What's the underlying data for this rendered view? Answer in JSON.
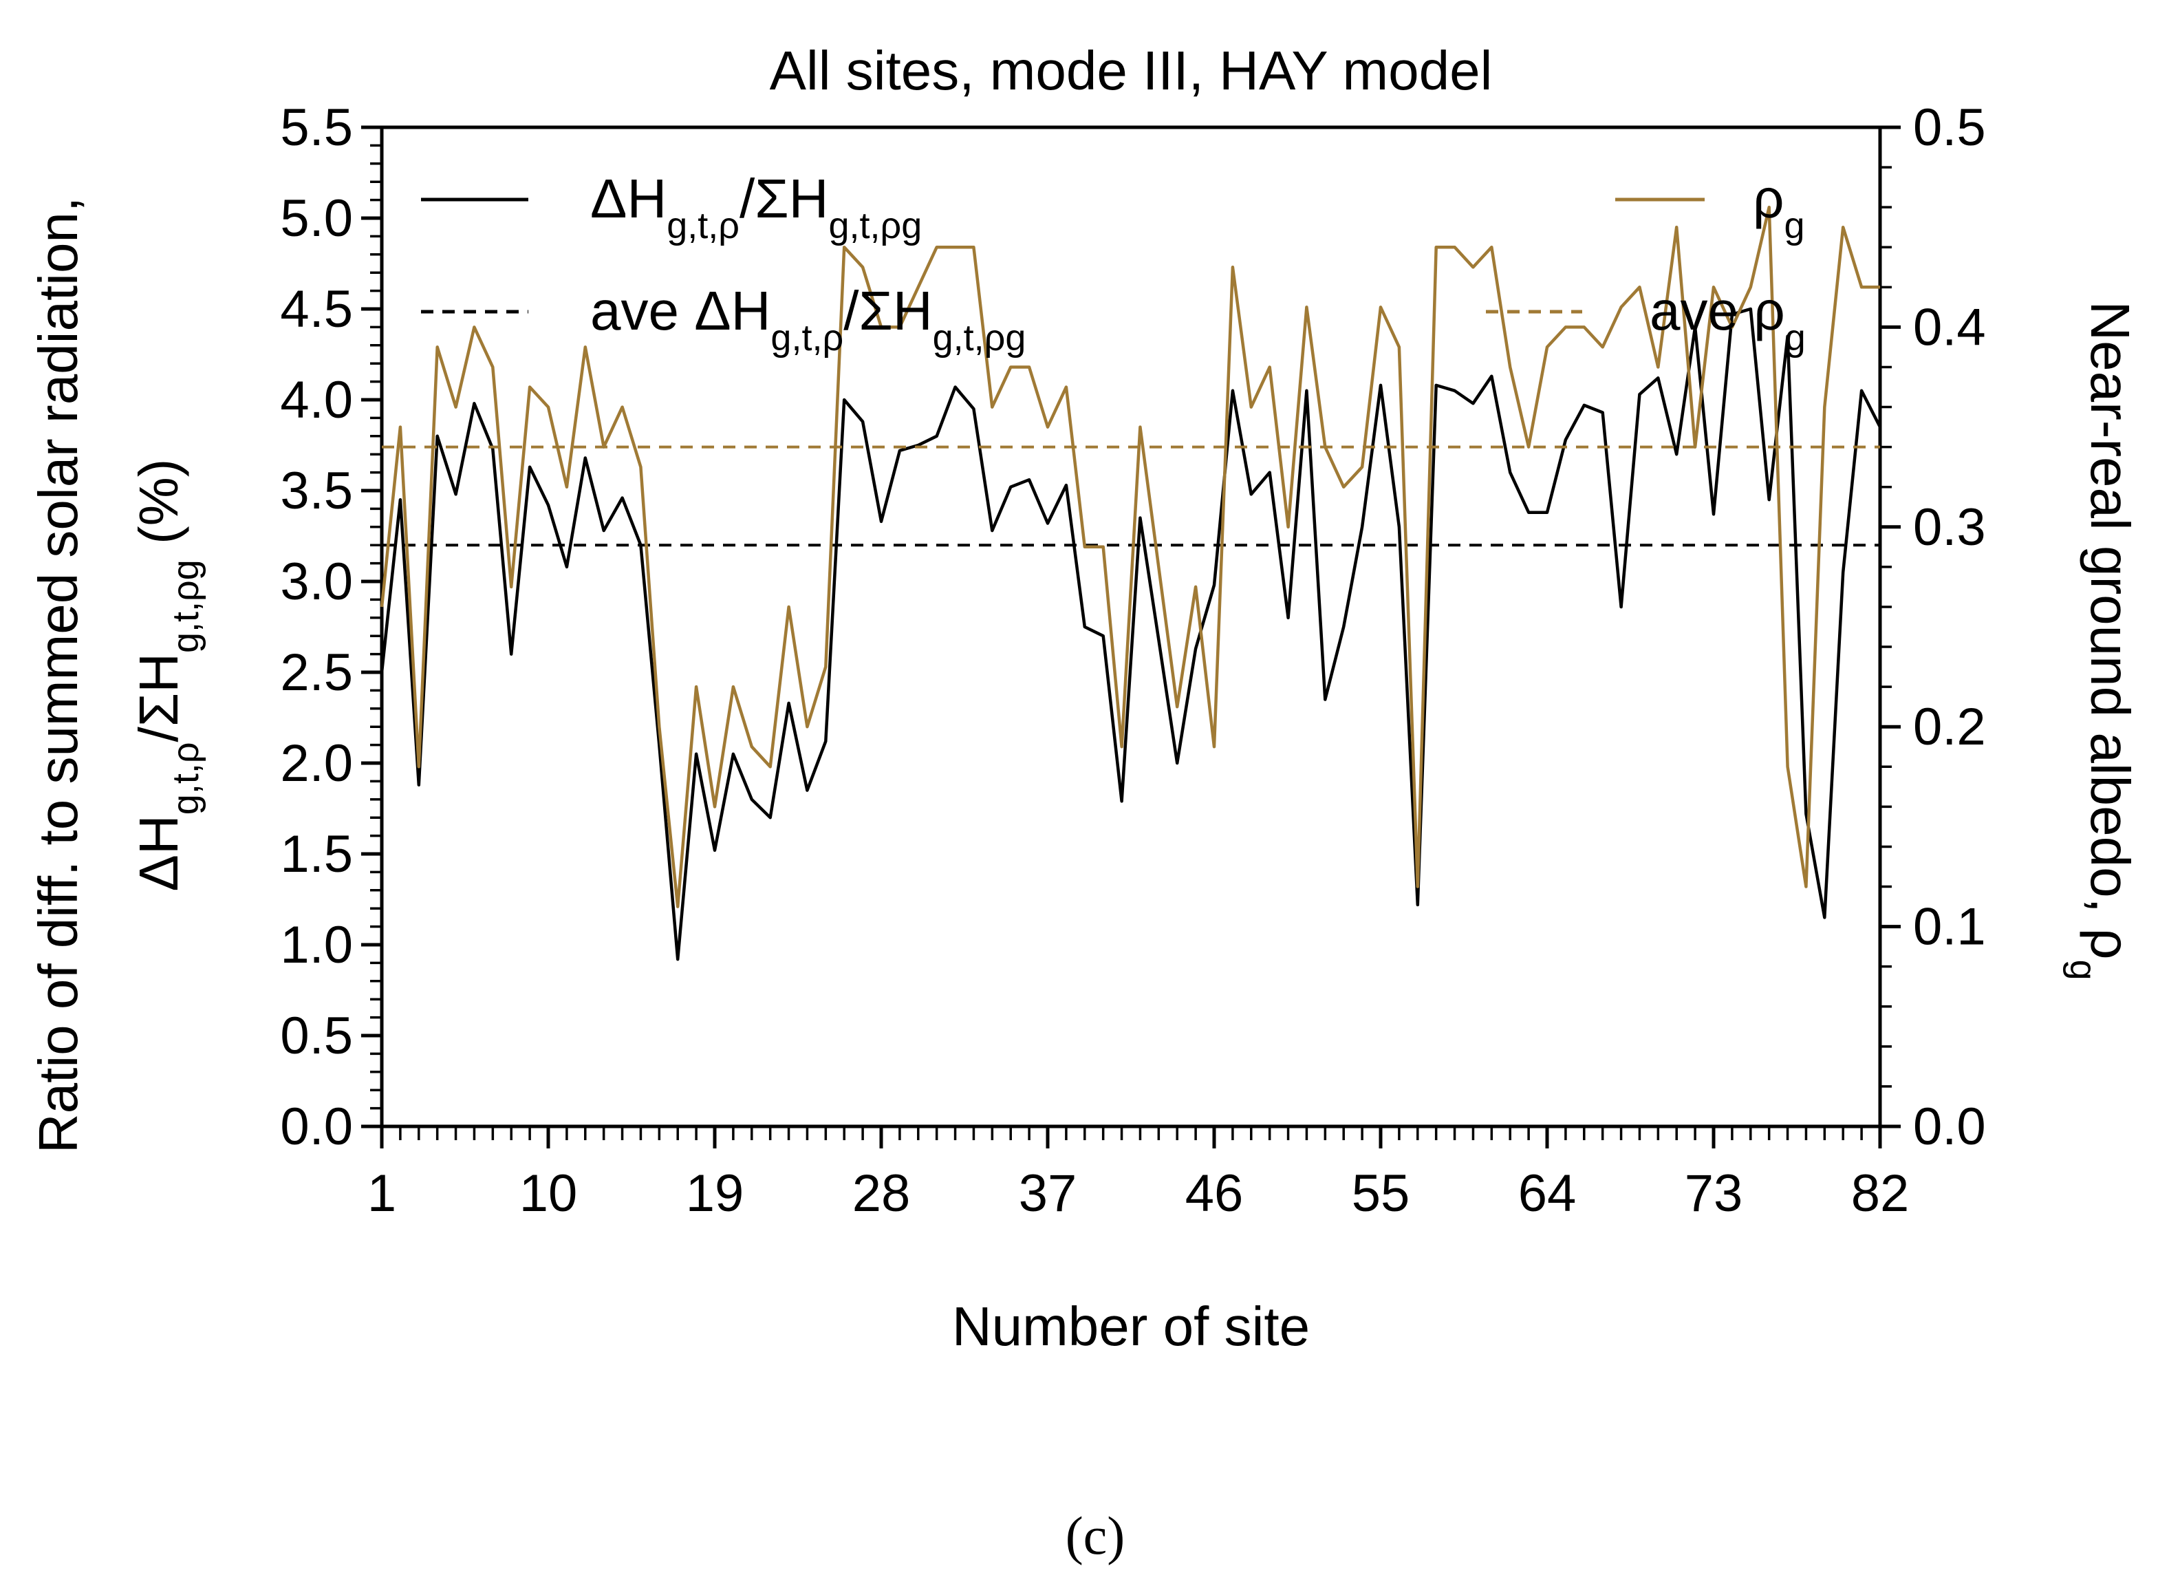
{
  "chart_data": {
    "type": "line",
    "title": "All sites, mode III, HAY model",
    "xlabel": "Number of site",
    "ylabel_left": {
      "line1": "Ratio of diff. to summed solar radiation,",
      "line2": "ΔH_{g,t,ρ}/ΣH_{g,t,ρg} (%)"
    },
    "ylabel_right": "Near-real ground albedo, ρ_g",
    "xlim": [
      1,
      82
    ],
    "ylim_left": [
      0,
      5.5
    ],
    "ylim_right": [
      0,
      0.5
    ],
    "x_ticks": [
      1,
      10,
      19,
      28,
      37,
      46,
      55,
      64,
      73,
      82
    ],
    "y_ticks_left": [
      "0.0",
      "0.5",
      "1.0",
      "1.5",
      "2.0",
      "2.5",
      "3.0",
      "3.5",
      "4.0",
      "4.5",
      "5.0",
      "5.5"
    ],
    "y_ticks_right": [
      "0.0",
      "0.1",
      "0.2",
      "0.3",
      "0.4",
      "0.5"
    ],
    "grid": false,
    "series": [
      {
        "name": "ΔH_{g,t,ρ}/ΣH_{g,t,ρg}",
        "axis": "left",
        "color": "#000000",
        "style": "solid",
        "values": [
          2.5,
          3.45,
          1.88,
          3.8,
          3.48,
          3.98,
          3.73,
          2.6,
          3.63,
          3.42,
          3.08,
          3.68,
          3.28,
          3.46,
          3.2,
          2.1,
          0.92,
          2.05,
          1.52,
          2.05,
          1.8,
          1.7,
          2.33,
          1.85,
          2.12,
          4.0,
          3.88,
          3.33,
          3.72,
          3.75,
          3.8,
          4.07,
          3.95,
          3.28,
          3.52,
          3.56,
          3.32,
          3.53,
          2.75,
          2.7,
          1.79,
          3.35,
          2.68,
          2.0,
          2.63,
          2.98,
          4.05,
          3.48,
          3.6,
          2.8,
          4.05,
          2.35,
          2.75,
          3.3,
          4.08,
          3.3,
          1.22,
          4.08,
          4.05,
          3.98,
          4.13,
          3.6,
          3.38,
          3.38,
          3.78,
          3.97,
          3.93,
          2.86,
          4.03,
          4.12,
          3.7,
          4.4,
          3.37,
          4.47,
          4.5,
          3.45,
          4.35,
          1.72,
          1.15,
          3.05,
          4.05,
          3.85
        ]
      },
      {
        "name": "ave ΔH_{g,t,ρ}/ΣH_{g,t,ρg}",
        "axis": "left",
        "color": "#000000",
        "style": "dashed",
        "constant": 3.2
      },
      {
        "name": "ρ_g",
        "axis": "right",
        "color": "#a07a35",
        "style": "solid",
        "values": [
          0.26,
          0.35,
          0.18,
          0.39,
          0.36,
          0.4,
          0.38,
          0.27,
          0.37,
          0.36,
          0.32,
          0.39,
          0.34,
          0.36,
          0.33,
          0.2,
          0.11,
          0.22,
          0.16,
          0.22,
          0.19,
          0.18,
          0.26,
          0.2,
          0.23,
          0.44,
          0.43,
          0.4,
          0.4,
          0.42,
          0.44,
          0.44,
          0.44,
          0.36,
          0.38,
          0.38,
          0.35,
          0.37,
          0.29,
          0.29,
          0.19,
          0.35,
          0.28,
          0.21,
          0.27,
          0.19,
          0.43,
          0.36,
          0.38,
          0.3,
          0.41,
          0.34,
          0.32,
          0.33,
          0.41,
          0.39,
          0.12,
          0.44,
          0.44,
          0.43,
          0.44,
          0.38,
          0.34,
          0.39,
          0.4,
          0.4,
          0.39,
          0.41,
          0.42,
          0.38,
          0.45,
          0.34,
          0.42,
          0.4,
          0.42,
          0.46,
          0.18,
          0.12,
          0.36,
          0.45,
          0.42,
          0.42
        ]
      },
      {
        "name": "ave ρ_g",
        "axis": "right",
        "color": "#a07a35",
        "style": "dashed",
        "constant": 0.34
      }
    ],
    "legend": [
      {
        "main": "ΔH",
        "sub": "g,t,ρ",
        "mid": "/ΣH",
        "sub2": "g,t,ρg",
        "style": "solid",
        "color": "#000000"
      },
      {
        "main": "ave ΔH",
        "sub": "g,t,ρ",
        "mid": "/ΣH",
        "sub2": "g,t,ρg",
        "style": "dashed",
        "color": "#000000"
      },
      {
        "main": "ρ",
        "sub": "g",
        "style": "solid",
        "color": "#a07a35"
      },
      {
        "main": "ave ρ",
        "sub": "g",
        "style": "dashed",
        "color": "#a07a35"
      }
    ],
    "panel_label": "(c)"
  }
}
